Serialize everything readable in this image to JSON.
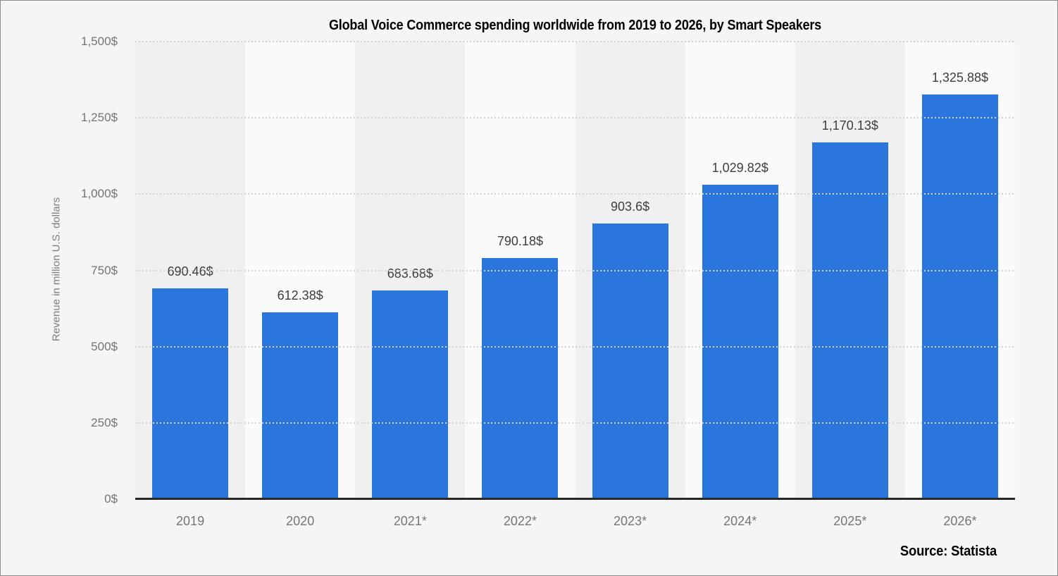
{
  "chart_data": {
    "type": "bar",
    "title": "Global Voice Commerce spending worldwide from 2019 to 2026, by Smart Speakers",
    "xlabel": "",
    "ylabel": "Revenue in million U.S. dollars",
    "categories": [
      "2019",
      "2020",
      "2021*",
      "2022*",
      "2023*",
      "2024*",
      "2025*",
      "2026*"
    ],
    "values": [
      690.46,
      612.38,
      683.68,
      790.18,
      903.6,
      1029.82,
      1170.13,
      1325.88
    ],
    "bar_value_labels": [
      "690.46$",
      "612.38$",
      "683.68$",
      "790.18$",
      "903.6$",
      "1,029.82$",
      "1,170.13$",
      "1,325.88$"
    ],
    "ylim": [
      0,
      1500
    ],
    "yticks": [
      {
        "value": 0,
        "label": "0$"
      },
      {
        "value": 250,
        "label": "250$"
      },
      {
        "value": 500,
        "label": "500$"
      },
      {
        "value": 750,
        "label": "750$"
      },
      {
        "value": 1000,
        "label": "1,000$"
      },
      {
        "value": 1250,
        "label": "1,250$"
      },
      {
        "value": 1500,
        "label": "1,500$"
      }
    ],
    "grid": "horizontal dotted gridlines at each y tick",
    "legend_position": "none",
    "bar_color": "#2b76dd",
    "band_colors": {
      "odd_columns": "#f0f0f0",
      "even_columns": "#fafafa"
    }
  },
  "source": {
    "label": "Source: Statista"
  }
}
